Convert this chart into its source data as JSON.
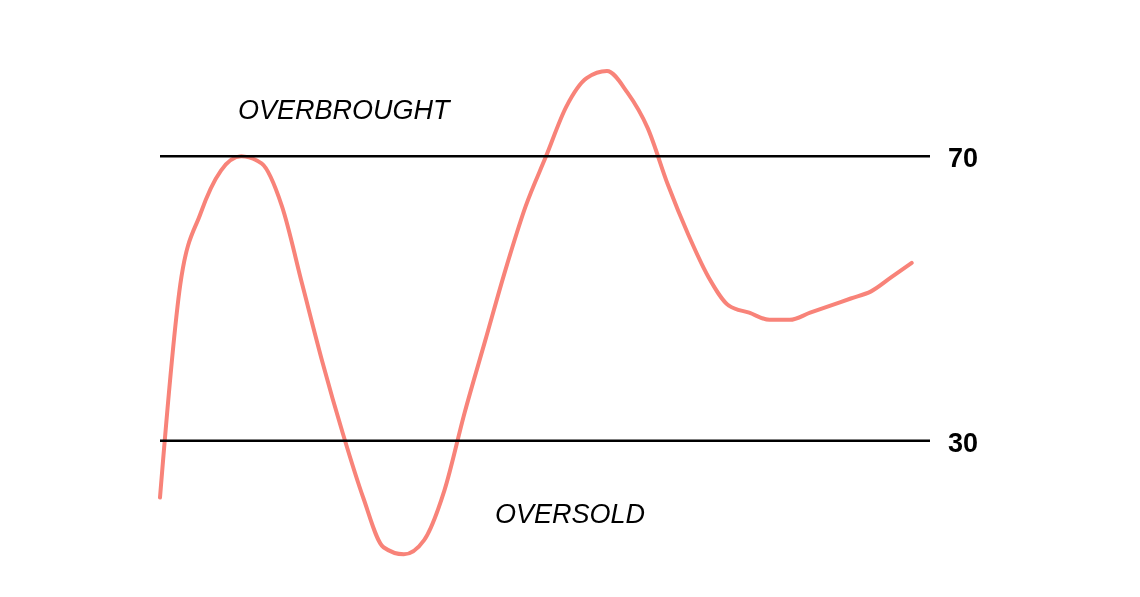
{
  "chart_data": {
    "type": "line",
    "categories": [
      null,
      null,
      null,
      null,
      null,
      null,
      null,
      null,
      null,
      null,
      null,
      null,
      null,
      null,
      null,
      null,
      null,
      null,
      null,
      null,
      null,
      null,
      null,
      null,
      null,
      null,
      null,
      null,
      null,
      null,
      null,
      null,
      null,
      null,
      null,
      null,
      null,
      null
    ],
    "series": [
      {
        "color": "#f88379",
        "values": [
          22,
          52,
          62,
          68,
          70,
          69,
          63,
          52,
          41,
          31,
          22,
          15,
          14,
          16,
          23,
          34,
          44,
          54,
          63,
          70,
          77,
          81,
          82,
          79,
          74,
          66,
          59,
          53,
          49,
          48,
          47,
          47,
          48,
          49,
          50,
          51,
          53,
          55
        ]
      }
    ],
    "ylim": [
      8,
      92
    ],
    "tick_labels": false,
    "marker": "none",
    "line_style": "solid",
    "ref_lines": [
      {
        "axis": "y",
        "value": 70,
        "label": "70",
        "color": "#000000"
      },
      {
        "axis": "y",
        "value": 30,
        "label": "30",
        "color": "#000000"
      }
    ],
    "annotations": [
      "OVERBROUGHT",
      "OVERSOLD"
    ]
  }
}
